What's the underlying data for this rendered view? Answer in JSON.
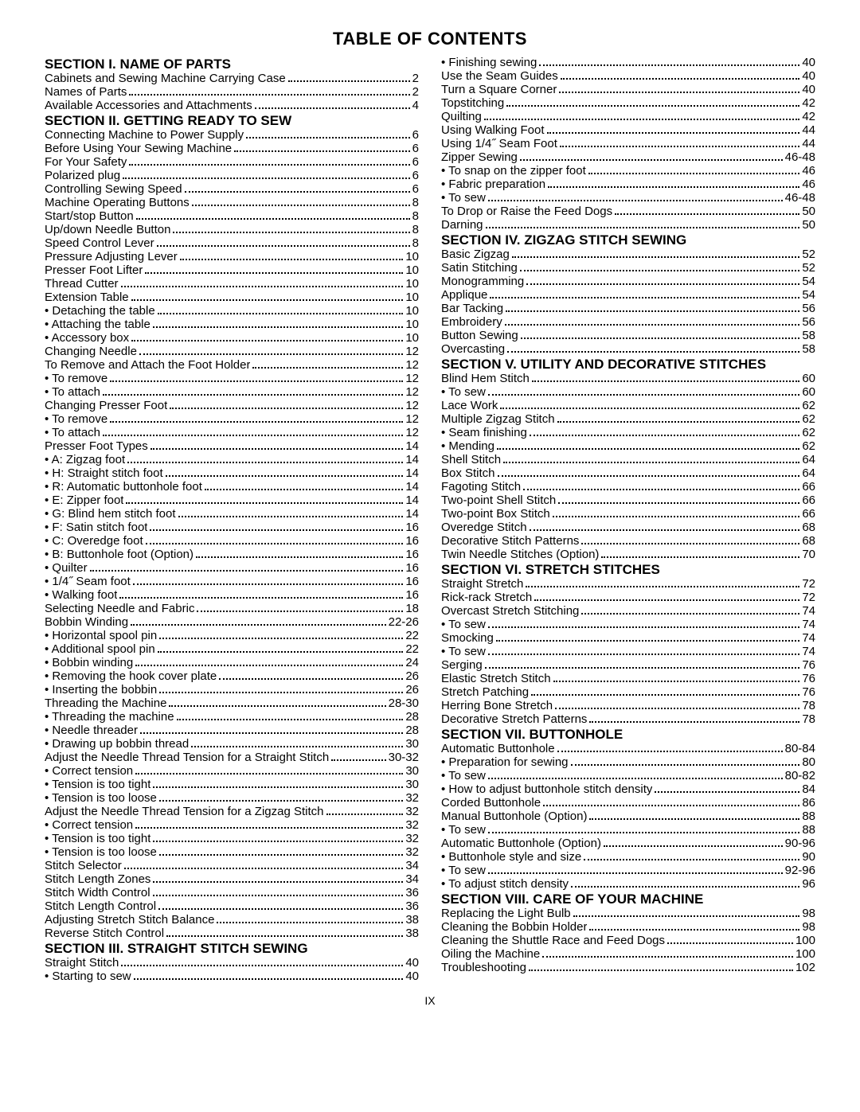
{
  "title": "TABLE OF CONTENTS",
  "page_marker": "IX",
  "columns": [
    [
      {
        "type": "section",
        "text": "SECTION I. NAME OF PARTS"
      },
      {
        "type": "entry",
        "label": "Cabinets and Sewing Machine Carrying Case",
        "page": "2"
      },
      {
        "type": "entry",
        "label": "Names of Parts",
        "page": "2"
      },
      {
        "type": "entry",
        "label": "Available Accessories and Attachments",
        "page": "4"
      },
      {
        "type": "section",
        "text": "SECTION II. GETTING READY TO SEW"
      },
      {
        "type": "entry",
        "label": "Connecting Machine to Power Supply",
        "page": "6"
      },
      {
        "type": "entry",
        "label": "Before Using Your Sewing Machine",
        "page": "6"
      },
      {
        "type": "entry",
        "label": "For Your Safety",
        "page": "6"
      },
      {
        "type": "entry",
        "label": "Polarized plug",
        "page": "6"
      },
      {
        "type": "entry",
        "label": "Controlling Sewing Speed",
        "page": "6"
      },
      {
        "type": "entry",
        "label": "Machine Operating Buttons",
        "page": "8"
      },
      {
        "type": "entry",
        "label": "Start/stop Button",
        "page": "8"
      },
      {
        "type": "entry",
        "label": "Up/down Needle Button",
        "page": "8"
      },
      {
        "type": "entry",
        "label": "Speed Control Lever",
        "page": "8"
      },
      {
        "type": "entry",
        "label": "Pressure Adjusting Lever",
        "page": "10"
      },
      {
        "type": "entry",
        "label": "Presser Foot Lifter",
        "page": "10"
      },
      {
        "type": "entry",
        "label": "Thread Cutter",
        "page": "10"
      },
      {
        "type": "entry",
        "label": "Extension Table",
        "page": "10"
      },
      {
        "type": "entry",
        "label": "• Detaching the table",
        "page": "10"
      },
      {
        "type": "entry",
        "label": "• Attaching the table",
        "page": "10"
      },
      {
        "type": "entry",
        "label": "• Accessory box",
        "page": "10"
      },
      {
        "type": "entry",
        "label": "Changing Needle",
        "page": "12"
      },
      {
        "type": "entry",
        "label": "To Remove and Attach the Foot Holder",
        "page": "12"
      },
      {
        "type": "entry",
        "label": "• To remove",
        "page": "12"
      },
      {
        "type": "entry",
        "label": "• To attach",
        "page": "12"
      },
      {
        "type": "entry",
        "label": "Changing Presser Foot",
        "page": "12"
      },
      {
        "type": "entry",
        "label": "• To remove",
        "page": "12"
      },
      {
        "type": "entry",
        "label": "• To attach",
        "page": "12"
      },
      {
        "type": "entry",
        "label": "Presser Foot Types",
        "page": "14"
      },
      {
        "type": "entry",
        "label": "• A: Zigzag foot",
        "page": "14"
      },
      {
        "type": "entry",
        "label": "• H: Straight stitch foot",
        "page": "14"
      },
      {
        "type": "entry",
        "label": "• R: Automatic buttonhole foot",
        "page": "14"
      },
      {
        "type": "entry",
        "label": "• E: Zipper foot",
        "page": "14"
      },
      {
        "type": "entry",
        "label": "• G: Blind hem stitch foot",
        "page": "14"
      },
      {
        "type": "entry",
        "label": "• F: Satin stitch foot",
        "page": "16"
      },
      {
        "type": "entry",
        "label": "• C: Overedge foot",
        "page": "16"
      },
      {
        "type": "entry",
        "label": "• B: Buttonhole foot (Option)",
        "page": "16"
      },
      {
        "type": "entry",
        "label": "• Quilter",
        "page": "16"
      },
      {
        "type": "entry",
        "label": "• 1/4˝ Seam foot",
        "page": "16"
      },
      {
        "type": "entry",
        "label": "• Walking foot",
        "page": "16"
      },
      {
        "type": "entry",
        "label": "Selecting Needle and Fabric",
        "page": "18"
      },
      {
        "type": "entry",
        "label": "Bobbin Winding",
        "page": "22-26"
      },
      {
        "type": "entry",
        "label": "• Horizontal spool pin",
        "page": "22"
      },
      {
        "type": "entry",
        "label": "• Additional spool pin",
        "page": "22"
      },
      {
        "type": "entry",
        "label": "• Bobbin winding",
        "page": "24"
      },
      {
        "type": "entry",
        "label": "• Removing the hook cover plate",
        "page": "26"
      },
      {
        "type": "entry",
        "label": "• Inserting the bobbin",
        "page": "26"
      },
      {
        "type": "entry",
        "label": "Threading the Machine",
        "page": "28-30"
      },
      {
        "type": "entry",
        "label": "• Threading the machine",
        "page": "28"
      },
      {
        "type": "entry",
        "label": "• Needle threader",
        "page": "28"
      },
      {
        "type": "entry",
        "label": "• Drawing up bobbin thread",
        "page": "30"
      },
      {
        "type": "entry",
        "label": "Adjust the Needle Thread Tension for a Straight Stitch",
        "page": "30-32",
        "tight": true
      },
      {
        "type": "entry",
        "label": "• Correct tension",
        "page": "30"
      },
      {
        "type": "entry",
        "label": "• Tension is too tight",
        "page": "30"
      },
      {
        "type": "entry",
        "label": "• Tension is too loose",
        "page": "32"
      },
      {
        "type": "entry",
        "label": "Adjust the Needle Thread Tension for a Zigzag Stitch",
        "page": "32"
      },
      {
        "type": "entry",
        "label": "• Correct tension",
        "page": "32"
      },
      {
        "type": "entry",
        "label": "• Tension is too tight",
        "page": "32"
      },
      {
        "type": "entry",
        "label": "• Tension is too loose",
        "page": "32"
      },
      {
        "type": "entry",
        "label": "Stitch Selector",
        "page": "34"
      },
      {
        "type": "entry",
        "label": "Stitch Length Zones",
        "page": "34"
      },
      {
        "type": "entry",
        "label": "Stitch Width Control",
        "page": "36"
      },
      {
        "type": "entry",
        "label": "Stitch Length Control",
        "page": "36"
      },
      {
        "type": "entry",
        "label": "Adjusting Stretch Stitch Balance",
        "page": "38"
      },
      {
        "type": "entry",
        "label": "Reverse Stitch Control",
        "page": "38"
      },
      {
        "type": "section",
        "text": "SECTION III. STRAIGHT STITCH SEWING"
      },
      {
        "type": "entry",
        "label": "Straight Stitch",
        "page": "40"
      },
      {
        "type": "entry",
        "label": "• Starting to sew",
        "page": "40"
      }
    ],
    [
      {
        "type": "entry",
        "label": "• Finishing sewing",
        "page": "40"
      },
      {
        "type": "entry",
        "label": "Use the Seam Guides",
        "page": "40"
      },
      {
        "type": "entry",
        "label": "Turn a Square Corner",
        "page": "40"
      },
      {
        "type": "entry",
        "label": "Topstitching",
        "page": "42"
      },
      {
        "type": "entry",
        "label": "Quilting",
        "page": "42"
      },
      {
        "type": "entry",
        "label": "Using Walking Foot",
        "page": "44"
      },
      {
        "type": "entry",
        "label": "Using 1/4˝ Seam Foot",
        "page": "44"
      },
      {
        "type": "entry",
        "label": "Zipper Sewing",
        "page": "46-48"
      },
      {
        "type": "entry",
        "label": "• To snap on the zipper foot",
        "page": "46"
      },
      {
        "type": "entry",
        "label": "• Fabric preparation",
        "page": "46"
      },
      {
        "type": "entry",
        "label": "• To sew",
        "page": "46-48"
      },
      {
        "type": "entry",
        "label": "To Drop or Raise the Feed Dogs",
        "page": "50"
      },
      {
        "type": "entry",
        "label": "Darning",
        "page": "50"
      },
      {
        "type": "section",
        "text": "SECTION IV. ZIGZAG STITCH SEWING"
      },
      {
        "type": "entry",
        "label": "Basic Zigzag",
        "page": "52"
      },
      {
        "type": "entry",
        "label": "Satin Stitching",
        "page": "52"
      },
      {
        "type": "entry",
        "label": "Monogramming",
        "page": "54"
      },
      {
        "type": "entry",
        "label": "Applique",
        "page": "54"
      },
      {
        "type": "entry",
        "label": "Bar Tacking",
        "page": "56"
      },
      {
        "type": "entry",
        "label": "Embroidery",
        "page": "56"
      },
      {
        "type": "entry",
        "label": "Button Sewing",
        "page": "58"
      },
      {
        "type": "entry",
        "label": "Overcasting",
        "page": "58"
      },
      {
        "type": "section",
        "text": "SECTION V. UTILITY AND DECORATIVE STITCHES"
      },
      {
        "type": "entry",
        "label": "Blind Hem Stitch",
        "page": "60"
      },
      {
        "type": "entry",
        "label": "• To sew",
        "page": "60"
      },
      {
        "type": "entry",
        "label": "Lace Work",
        "page": "62"
      },
      {
        "type": "entry",
        "label": "Multiple Zigzag Stitch",
        "page": "62"
      },
      {
        "type": "entry",
        "label": "• Seam finishing",
        "page": "62"
      },
      {
        "type": "entry",
        "label": "• Mending",
        "page": "62"
      },
      {
        "type": "entry",
        "label": "Shell Stitch",
        "page": "64"
      },
      {
        "type": "entry",
        "label": "Box Stitch",
        "page": "64"
      },
      {
        "type": "entry",
        "label": "Fagoting Stitch",
        "page": "66"
      },
      {
        "type": "entry",
        "label": "Two-point Shell Stitch",
        "page": "66"
      },
      {
        "type": "entry",
        "label": "Two-point Box Stitch",
        "page": "66"
      },
      {
        "type": "entry",
        "label": "Overedge Stitch",
        "page": "68"
      },
      {
        "type": "entry",
        "label": "Decorative Stitch Patterns",
        "page": "68"
      },
      {
        "type": "entry",
        "label": "Twin Needle Stitches (Option)",
        "page": "70"
      },
      {
        "type": "section",
        "text": "SECTION VI. STRETCH STITCHES"
      },
      {
        "type": "entry",
        "label": "Straight Stretch",
        "page": "72"
      },
      {
        "type": "entry",
        "label": "Rick-rack Stretch",
        "page": "72"
      },
      {
        "type": "entry",
        "label": "Overcast Stretch Stitching",
        "page": "74"
      },
      {
        "type": "entry",
        "label": "• To sew",
        "page": "74"
      },
      {
        "type": "entry",
        "label": "Smocking",
        "page": "74"
      },
      {
        "type": "entry",
        "label": "• To sew",
        "page": "74"
      },
      {
        "type": "entry",
        "label": "Serging",
        "page": "76"
      },
      {
        "type": "entry",
        "label": "Elastic Stretch Stitch",
        "page": "76"
      },
      {
        "type": "entry",
        "label": "Stretch Patching",
        "page": "76"
      },
      {
        "type": "entry",
        "label": "Herring Bone Stretch",
        "page": "78"
      },
      {
        "type": "entry",
        "label": "Decorative Stretch Patterns",
        "page": "78"
      },
      {
        "type": "section",
        "text": "SECTION VII. BUTTONHOLE"
      },
      {
        "type": "entry",
        "label": "Automatic Buttonhole",
        "page": "80-84"
      },
      {
        "type": "entry",
        "label": "• Preparation for sewing",
        "page": "80"
      },
      {
        "type": "entry",
        "label": "• To sew",
        "page": "80-82"
      },
      {
        "type": "entry",
        "label": "• How to adjust buttonhole stitch density",
        "page": "84"
      },
      {
        "type": "entry",
        "label": "Corded Buttonhole",
        "page": "86"
      },
      {
        "type": "entry",
        "label": "Manual Buttonhole (Option)",
        "page": "88"
      },
      {
        "type": "entry",
        "label": "• To sew",
        "page": "88"
      },
      {
        "type": "entry",
        "label": "Automatic Buttonhole (Option)",
        "page": "90-96"
      },
      {
        "type": "entry",
        "label": "• Buttonhole style and size",
        "page": "90"
      },
      {
        "type": "entry",
        "label": "• To sew",
        "page": "92-96"
      },
      {
        "type": "entry",
        "label": "• To adjust stitch density",
        "page": "96"
      },
      {
        "type": "section",
        "text": "SECTION VIII. CARE OF YOUR MACHINE"
      },
      {
        "type": "entry",
        "label": "Replacing the Light Bulb",
        "page": "98"
      },
      {
        "type": "entry",
        "label": "Cleaning the Bobbin Holder",
        "page": "98"
      },
      {
        "type": "entry",
        "label": "Cleaning the Shuttle Race and Feed Dogs",
        "page": "100"
      },
      {
        "type": "entry",
        "label": "Oiling the Machine",
        "page": "100"
      },
      {
        "type": "entry",
        "label": "Troubleshooting",
        "page": "102"
      }
    ]
  ]
}
